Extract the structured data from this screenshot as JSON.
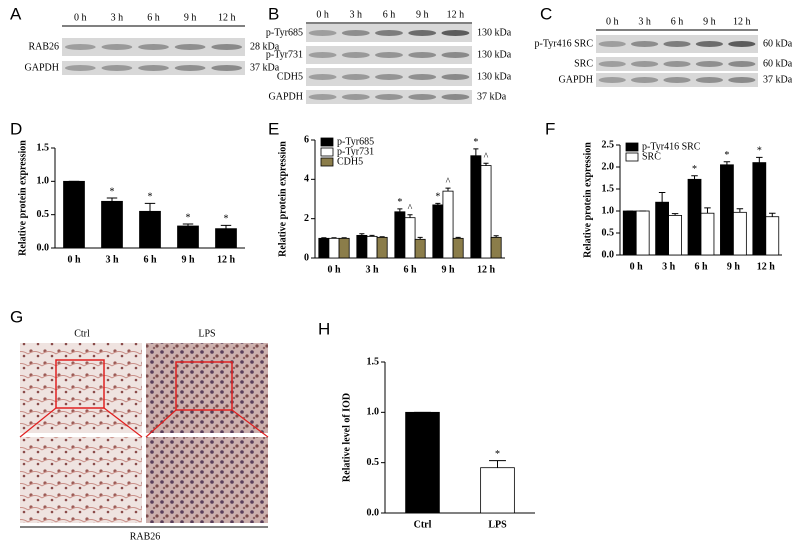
{
  "blots": [
    {
      "panel": "A",
      "lanes": [
        "0 h",
        "3 h",
        "6 h",
        "9 h",
        "12 h"
      ],
      "rows": [
        {
          "name": "RAB26",
          "size": "28 kDa"
        },
        {
          "name": "GAPDH",
          "size": "37 kDa"
        }
      ]
    },
    {
      "panel": "B",
      "lanes": [
        "0 h",
        "3 h",
        "6 h",
        "9 h",
        "12 h"
      ],
      "rows": [
        {
          "name": "p-Tyr685",
          "size": "130 kDa"
        },
        {
          "name": "p-Tyr731",
          "size": "130 kDa"
        },
        {
          "name": "CDH5",
          "size": "130 kDa"
        },
        {
          "name": "GAPDH",
          "size": "37 kDa"
        }
      ]
    },
    {
      "panel": "C",
      "lanes": [
        "0 h",
        "3 h",
        "6 h",
        "9 h",
        "12 h"
      ],
      "rows": [
        {
          "name": "p-Tyr416 SRC",
          "size": "60 kDa"
        },
        {
          "name": "SRC",
          "size": "60 kDa"
        },
        {
          "name": "GAPDH",
          "size": "37 kDa"
        }
      ]
    }
  ],
  "images": {
    "panel": "G",
    "labels": [
      "Ctrl",
      "LPS"
    ],
    "caption": "RAB26"
  },
  "chart_data": [
    {
      "type": "bar",
      "panel": "D",
      "y_label": "Relative protein expression",
      "categories": [
        "0 h",
        "3 h",
        "6 h",
        "9 h",
        "12 h"
      ],
      "series": [
        {
          "color": "#000000",
          "values": [
            1.0,
            0.7,
            0.55,
            0.33,
            0.29
          ],
          "errors": [
            0,
            0.05,
            0.12,
            0.03,
            0.05
          ],
          "markers": [
            null,
            "*",
            "*",
            "*",
            "*"
          ]
        }
      ],
      "ylim": [
        0,
        1.5
      ],
      "yticks": [
        {
          "value": 0,
          "label": "0.0"
        },
        {
          "value": 0.5,
          "label": "0.5"
        },
        {
          "value": 1,
          "label": "1.0"
        },
        {
          "value": 1.5,
          "label": "1.5"
        }
      ]
    },
    {
      "type": "bar",
      "panel": "E",
      "y_label": "Relative protein expression",
      "categories": [
        "0 h",
        "3 h",
        "6 h",
        "9 h",
        "12 h"
      ],
      "series": [
        {
          "name": "p-Tyr685",
          "color": "#000000",
          "values": [
            1.0,
            1.15,
            2.35,
            2.7,
            5.2
          ],
          "errors": [
            0.03,
            0.08,
            0.15,
            0.08,
            0.35
          ],
          "markers": [
            null,
            null,
            "*",
            "*",
            "*"
          ]
        },
        {
          "name": "p-Tyr731",
          "color": "#ffffff",
          "values": [
            1.0,
            1.1,
            2.05,
            3.4,
            4.7
          ],
          "errors": [
            0.03,
            0.05,
            0.15,
            0.15,
            0.12
          ],
          "markers": [
            null,
            null,
            "^",
            "^",
            "^"
          ]
        },
        {
          "name": "CDH5",
          "color": "#8b7d4a",
          "values": [
            1.0,
            1.05,
            0.95,
            1.0,
            1.05
          ],
          "errors": [
            0.03,
            0.03,
            0.1,
            0.05,
            0.08
          ],
          "markers": [
            null,
            null,
            null,
            null,
            null
          ]
        }
      ],
      "ylim": [
        0,
        6
      ],
      "yticks": [
        0,
        2,
        4,
        6
      ]
    },
    {
      "type": "bar",
      "panel": "F",
      "y_label": "Relative protein expression",
      "categories": [
        "0 h",
        "3 h",
        "6 h",
        "9 h",
        "12 h"
      ],
      "series": [
        {
          "name": "p-Tyr416 SRC",
          "color": "#000000",
          "values": [
            1.0,
            1.2,
            1.72,
            2.05,
            2.1
          ],
          "errors": [
            0,
            0.22,
            0.08,
            0.07,
            0.12
          ],
          "markers": [
            null,
            null,
            "*",
            "*",
            "*"
          ]
        },
        {
          "name": "SRC",
          "color": "#ffffff",
          "values": [
            1.0,
            0.9,
            0.95,
            0.97,
            0.87
          ],
          "errors": [
            0,
            0.04,
            0.12,
            0.08,
            0.08
          ],
          "markers": [
            null,
            null,
            null,
            null,
            null
          ]
        }
      ],
      "ylim": [
        0,
        2.5
      ],
      "yticks": [
        {
          "value": 0,
          "label": "0.0"
        },
        {
          "value": 0.5,
          "label": "0.5"
        },
        {
          "value": 1,
          "label": "1.0"
        },
        {
          "value": 1.5,
          "label": "1.5"
        },
        {
          "value": 2,
          "label": "2.0"
        },
        {
          "value": 2.5,
          "label": "2.5"
        }
      ]
    },
    {
      "type": "bar",
      "panel": "H",
      "y_label": "Relative level of IOD",
      "categories": [
        "Ctrl",
        "LPS"
      ],
      "series": [
        {
          "colors": [
            "#000000",
            "#ffffff"
          ],
          "values": [
            1.0,
            0.45
          ],
          "errors": [
            0,
            0.07
          ],
          "markers": [
            null,
            "*"
          ]
        }
      ],
      "ylim": [
        0,
        1.5
      ],
      "yticks": [
        {
          "value": 0,
          "label": "0.0"
        },
        {
          "value": 0.5,
          "label": "0.5"
        },
        {
          "value": 1,
          "label": "1.0"
        },
        {
          "value": 1.5,
          "label": "1.5"
        }
      ]
    }
  ]
}
